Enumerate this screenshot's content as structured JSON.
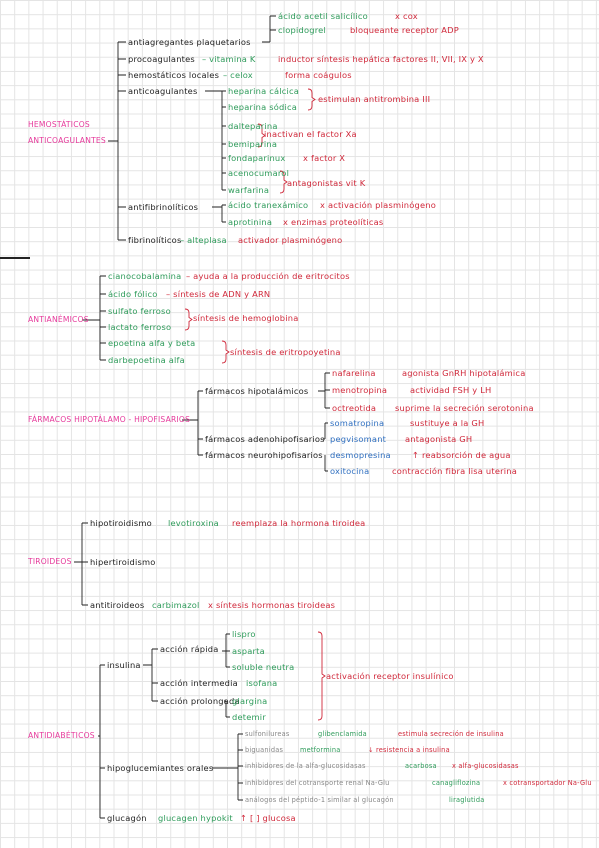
{
  "sections": [
    {
      "title": [
        "HEMOSTÁTICOS",
        "ANTICOAGULANTES"
      ],
      "entries": [
        [
          "antiagregantes plaquetarios"
        ],
        [
          "ácido acetil salicílico",
          "x cox"
        ],
        [
          "clopidogrel",
          "bloqueante receptor ADP"
        ],
        [
          "procoagulantes",
          "– vitamina K",
          "inductor síntesis hepática factores II, VII, IX y X"
        ],
        [
          "hemostáticos locales",
          "– celox",
          "forma coágulos"
        ],
        [
          "anticoagulantes"
        ],
        [
          "heparina cálcica"
        ],
        [
          "heparina sódica"
        ],
        [
          "estimulan antitrombina III"
        ],
        [
          "dalteparina"
        ],
        [
          "bemiparina"
        ],
        [
          "inactivan el factor Xa"
        ],
        [
          "fondaparinux",
          "x factor X"
        ],
        [
          "acenocumarol"
        ],
        [
          "warfarina"
        ],
        [
          "antagonistas vit K"
        ],
        [
          "antifibrinolíticos"
        ],
        [
          "ácido tranexámico",
          "x activación plasminógeno"
        ],
        [
          "aprotinina",
          "x enzimas proteolíticas"
        ],
        [
          "fibrinolíticos",
          "– alteplasa",
          "activador plasminógeno"
        ]
      ]
    },
    {
      "title": [
        "ANTIANÉMICOS"
      ],
      "entries": [
        [
          "cianocobalamina",
          "– ayuda a la producción de eritrocitos"
        ],
        [
          "ácido fólico",
          "– síntesis de ADN y ARN"
        ],
        [
          "sulfato ferroso"
        ],
        [
          "lactato ferroso"
        ],
        [
          "síntesis de hemoglobina"
        ],
        [
          "epoetina alfa y beta"
        ],
        [
          "darbepoetina alfa"
        ],
        [
          "síntesis de eritropoyetina"
        ]
      ]
    },
    {
      "title": [
        "FÁRMACOS HIPOTÁLAMO - HIPOFISARIOS"
      ],
      "entries": [
        [
          "fármacos hipotalámicos"
        ],
        [
          "nafarelina",
          "agonista GnRH hipotalámica"
        ],
        [
          "menotropina",
          "actividad FSH y LH"
        ],
        [
          "octreotida",
          "suprime la secreción serotonina"
        ],
        [
          "fármacos adenohipofisarios"
        ],
        [
          "somatropina",
          "sustituye a la GH"
        ],
        [
          "pegvisomant",
          "antagonista GH"
        ],
        [
          "fármacos neurohipofisarios"
        ],
        [
          "desmopresina",
          "↑ reabsorción de agua"
        ],
        [
          "oxitocina",
          "contracción fibra lisa uterina"
        ]
      ]
    },
    {
      "title": [
        "TIROIDEOS"
      ],
      "entries": [
        [
          "hipotiroidismo",
          "levotiroxina",
          "reemplaza la hormona tiroidea"
        ],
        [
          "hipertiroidismo"
        ],
        [
          "antitiroideos",
          "carbimazol",
          "x síntesis hormonas tiroideas"
        ]
      ]
    },
    {
      "title": [
        "ANTIDIABÉTICOS"
      ],
      "entries": [
        [
          "insulina"
        ],
        [
          "acción rápida"
        ],
        [
          "lispro"
        ],
        [
          "asparta"
        ],
        [
          "soluble neutra"
        ],
        [
          "acción intermedia",
          "isofana"
        ],
        [
          "acción prolongada"
        ],
        [
          "glargina"
        ],
        [
          "detemir"
        ],
        [
          "activación receptor insulínico"
        ],
        [
          "hipoglucemiantes orales"
        ],
        [
          "sulfonilureas",
          "glibenclamida",
          "estimula secreción de insulina"
        ],
        [
          "biguanidas",
          "metformina",
          "↓ resistencia a insulina"
        ],
        [
          "inhibidores de la alfa-glucosidasas",
          "acarbosa",
          "x alfa-glucosidasas"
        ],
        [
          "inhibidores del cotransporte renal Na-Glu",
          "canagliflozina",
          "x cotransportador Na-Glu"
        ],
        [
          "análogos del péptido-1 similar al glucagón",
          "liraglutida"
        ],
        [
          "glucagón",
          "glucagen hypokit",
          "↑ [ ] glucosa"
        ]
      ]
    }
  ]
}
